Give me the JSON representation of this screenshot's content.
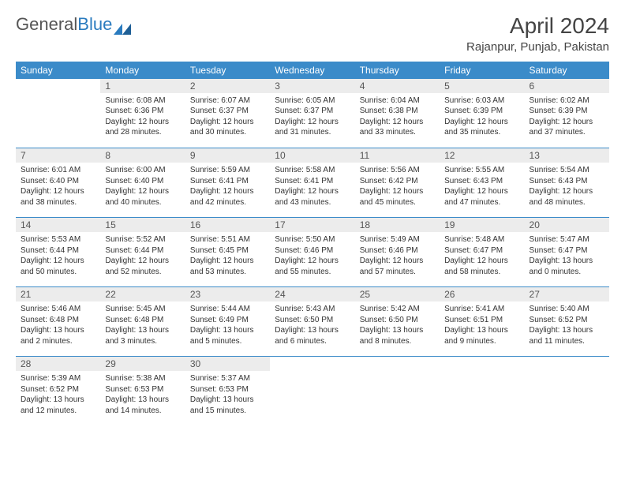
{
  "brand": {
    "part1": "General",
    "part2": "Blue"
  },
  "title": "April 2024",
  "location": "Rajanpur, Punjab, Pakistan",
  "colors": {
    "header_bg": "#3b8bc9",
    "header_text": "#ffffff",
    "daynum_bg": "#ececec",
    "row_border": "#3b8bc9",
    "brand_gray": "#555555",
    "brand_blue": "#2a7bbf"
  },
  "weekdays": [
    "Sunday",
    "Monday",
    "Tuesday",
    "Wednesday",
    "Thursday",
    "Friday",
    "Saturday"
  ],
  "weeks": [
    [
      {
        "empty": true
      },
      {
        "n": "1",
        "sr": "Sunrise: 6:08 AM",
        "ss": "Sunset: 6:36 PM",
        "d1": "Daylight: 12 hours",
        "d2": "and 28 minutes."
      },
      {
        "n": "2",
        "sr": "Sunrise: 6:07 AM",
        "ss": "Sunset: 6:37 PM",
        "d1": "Daylight: 12 hours",
        "d2": "and 30 minutes."
      },
      {
        "n": "3",
        "sr": "Sunrise: 6:05 AM",
        "ss": "Sunset: 6:37 PM",
        "d1": "Daylight: 12 hours",
        "d2": "and 31 minutes."
      },
      {
        "n": "4",
        "sr": "Sunrise: 6:04 AM",
        "ss": "Sunset: 6:38 PM",
        "d1": "Daylight: 12 hours",
        "d2": "and 33 minutes."
      },
      {
        "n": "5",
        "sr": "Sunrise: 6:03 AM",
        "ss": "Sunset: 6:39 PM",
        "d1": "Daylight: 12 hours",
        "d2": "and 35 minutes."
      },
      {
        "n": "6",
        "sr": "Sunrise: 6:02 AM",
        "ss": "Sunset: 6:39 PM",
        "d1": "Daylight: 12 hours",
        "d2": "and 37 minutes."
      }
    ],
    [
      {
        "n": "7",
        "sr": "Sunrise: 6:01 AM",
        "ss": "Sunset: 6:40 PM",
        "d1": "Daylight: 12 hours",
        "d2": "and 38 minutes."
      },
      {
        "n": "8",
        "sr": "Sunrise: 6:00 AM",
        "ss": "Sunset: 6:40 PM",
        "d1": "Daylight: 12 hours",
        "d2": "and 40 minutes."
      },
      {
        "n": "9",
        "sr": "Sunrise: 5:59 AM",
        "ss": "Sunset: 6:41 PM",
        "d1": "Daylight: 12 hours",
        "d2": "and 42 minutes."
      },
      {
        "n": "10",
        "sr": "Sunrise: 5:58 AM",
        "ss": "Sunset: 6:41 PM",
        "d1": "Daylight: 12 hours",
        "d2": "and 43 minutes."
      },
      {
        "n": "11",
        "sr": "Sunrise: 5:56 AM",
        "ss": "Sunset: 6:42 PM",
        "d1": "Daylight: 12 hours",
        "d2": "and 45 minutes."
      },
      {
        "n": "12",
        "sr": "Sunrise: 5:55 AM",
        "ss": "Sunset: 6:43 PM",
        "d1": "Daylight: 12 hours",
        "d2": "and 47 minutes."
      },
      {
        "n": "13",
        "sr": "Sunrise: 5:54 AM",
        "ss": "Sunset: 6:43 PM",
        "d1": "Daylight: 12 hours",
        "d2": "and 48 minutes."
      }
    ],
    [
      {
        "n": "14",
        "sr": "Sunrise: 5:53 AM",
        "ss": "Sunset: 6:44 PM",
        "d1": "Daylight: 12 hours",
        "d2": "and 50 minutes."
      },
      {
        "n": "15",
        "sr": "Sunrise: 5:52 AM",
        "ss": "Sunset: 6:44 PM",
        "d1": "Daylight: 12 hours",
        "d2": "and 52 minutes."
      },
      {
        "n": "16",
        "sr": "Sunrise: 5:51 AM",
        "ss": "Sunset: 6:45 PM",
        "d1": "Daylight: 12 hours",
        "d2": "and 53 minutes."
      },
      {
        "n": "17",
        "sr": "Sunrise: 5:50 AM",
        "ss": "Sunset: 6:46 PM",
        "d1": "Daylight: 12 hours",
        "d2": "and 55 minutes."
      },
      {
        "n": "18",
        "sr": "Sunrise: 5:49 AM",
        "ss": "Sunset: 6:46 PM",
        "d1": "Daylight: 12 hours",
        "d2": "and 57 minutes."
      },
      {
        "n": "19",
        "sr": "Sunrise: 5:48 AM",
        "ss": "Sunset: 6:47 PM",
        "d1": "Daylight: 12 hours",
        "d2": "and 58 minutes."
      },
      {
        "n": "20",
        "sr": "Sunrise: 5:47 AM",
        "ss": "Sunset: 6:47 PM",
        "d1": "Daylight: 13 hours",
        "d2": "and 0 minutes."
      }
    ],
    [
      {
        "n": "21",
        "sr": "Sunrise: 5:46 AM",
        "ss": "Sunset: 6:48 PM",
        "d1": "Daylight: 13 hours",
        "d2": "and 2 minutes."
      },
      {
        "n": "22",
        "sr": "Sunrise: 5:45 AM",
        "ss": "Sunset: 6:48 PM",
        "d1": "Daylight: 13 hours",
        "d2": "and 3 minutes."
      },
      {
        "n": "23",
        "sr": "Sunrise: 5:44 AM",
        "ss": "Sunset: 6:49 PM",
        "d1": "Daylight: 13 hours",
        "d2": "and 5 minutes."
      },
      {
        "n": "24",
        "sr": "Sunrise: 5:43 AM",
        "ss": "Sunset: 6:50 PM",
        "d1": "Daylight: 13 hours",
        "d2": "and 6 minutes."
      },
      {
        "n": "25",
        "sr": "Sunrise: 5:42 AM",
        "ss": "Sunset: 6:50 PM",
        "d1": "Daylight: 13 hours",
        "d2": "and 8 minutes."
      },
      {
        "n": "26",
        "sr": "Sunrise: 5:41 AM",
        "ss": "Sunset: 6:51 PM",
        "d1": "Daylight: 13 hours",
        "d2": "and 9 minutes."
      },
      {
        "n": "27",
        "sr": "Sunrise: 5:40 AM",
        "ss": "Sunset: 6:52 PM",
        "d1": "Daylight: 13 hours",
        "d2": "and 11 minutes."
      }
    ],
    [
      {
        "n": "28",
        "sr": "Sunrise: 5:39 AM",
        "ss": "Sunset: 6:52 PM",
        "d1": "Daylight: 13 hours",
        "d2": "and 12 minutes."
      },
      {
        "n": "29",
        "sr": "Sunrise: 5:38 AM",
        "ss": "Sunset: 6:53 PM",
        "d1": "Daylight: 13 hours",
        "d2": "and 14 minutes."
      },
      {
        "n": "30",
        "sr": "Sunrise: 5:37 AM",
        "ss": "Sunset: 6:53 PM",
        "d1": "Daylight: 13 hours",
        "d2": "and 15 minutes."
      },
      {
        "empty": true
      },
      {
        "empty": true
      },
      {
        "empty": true
      },
      {
        "empty": true
      }
    ]
  ]
}
